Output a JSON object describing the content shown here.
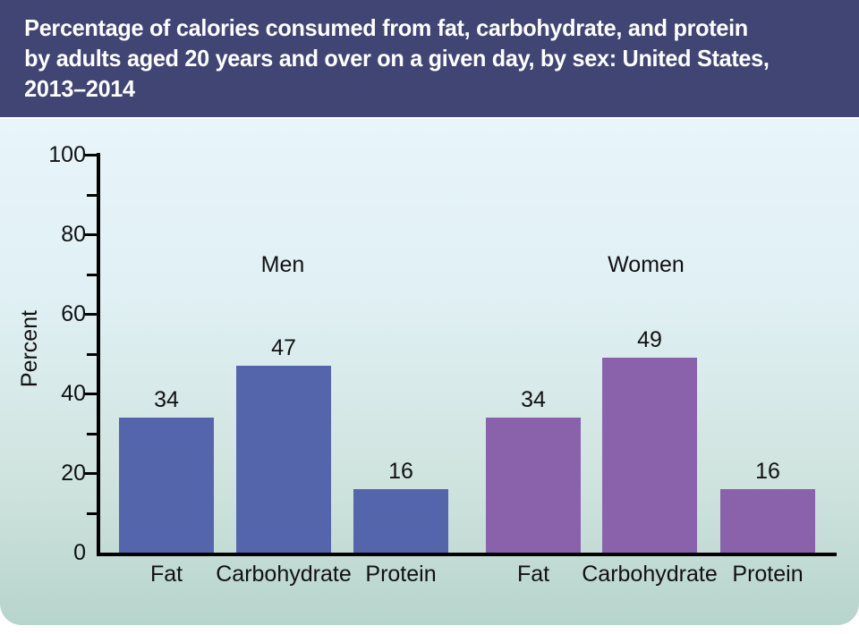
{
  "header": {
    "title_lines": [
      "Percentage of calories consumed from fat, carbohydrate, and protein",
      "by adults aged 20 years and over on a given day, by sex: United States,",
      "2013–2014"
    ],
    "bg_color": "#414574",
    "text_color": "#ffffff"
  },
  "chart_data": {
    "type": "bar",
    "title": "Percentage of calories consumed from fat, carbohydrate, and protein by adults aged 20 years and over on a given day, by sex: United States, 2013–2014",
    "ylabel": "Percent",
    "xlabel": "",
    "ylim": [
      0,
      100
    ],
    "ytick_major_step": 20,
    "ytick_minor_step": 10,
    "ytick_labels": [
      "0",
      "20",
      "40",
      "60",
      "80",
      "100"
    ],
    "grid": false,
    "legend_position": "none",
    "categories": [
      "Fat",
      "Carbohydrate",
      "Protein"
    ],
    "series": [
      {
        "name": "Men",
        "color": "#5565ac",
        "values": [
          34,
          47,
          16
        ]
      },
      {
        "name": "Women",
        "color": "#8a62ab",
        "values": [
          34,
          49,
          16
        ]
      }
    ],
    "value_labels": [
      [
        "34",
        "47",
        "16"
      ],
      [
        "34",
        "49",
        "16"
      ]
    ]
  },
  "panel": {
    "bg_gradient_top": "#e8f5fb",
    "bg_gradient_bottom": "#b7d4cd",
    "axis_color": "#000000"
  }
}
